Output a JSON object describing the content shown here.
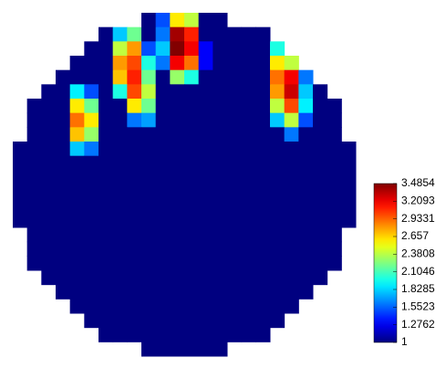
{
  "chart_data": {
    "type": "heatmap",
    "colormap": "jet",
    "clim": [
      1,
      3.4854
    ],
    "cticks": [
      1,
      1.2762,
      1.5523,
      1.8285,
      2.1046,
      2.3808,
      2.657,
      2.9331,
      3.2093,
      3.4854
    ],
    "z": [
      [
        null,
        null,
        null,
        null,
        null,
        null,
        null,
        null,
        null,
        1,
        1.5,
        2.6,
        2.4,
        1,
        1,
        null,
        null,
        null,
        null,
        null,
        null,
        null,
        null,
        null
      ],
      [
        null,
        null,
        null,
        null,
        null,
        null,
        1,
        1.8,
        2.2,
        1,
        1.6,
        3.4,
        3.1,
        1,
        1,
        1,
        1,
        1,
        null,
        null,
        null,
        null,
        null,
        null
      ],
      [
        null,
        null,
        null,
        null,
        null,
        1,
        1,
        2.4,
        2.8,
        1.5,
        1.8,
        3.48,
        3.2,
        1.3,
        1,
        1,
        1,
        1,
        2.0,
        null,
        null,
        null,
        null,
        null
      ],
      [
        null,
        null,
        null,
        null,
        1,
        1,
        1,
        2.8,
        3.0,
        2.0,
        1.6,
        3.2,
        2.9,
        1.3,
        1,
        1,
        1,
        1,
        2.6,
        2.4,
        null,
        null,
        null,
        null
      ],
      [
        null,
        null,
        null,
        1,
        1,
        1,
        1,
        2.7,
        3.1,
        2.2,
        1,
        2.3,
        2.0,
        1,
        1,
        1,
        1,
        1,
        2.9,
        3.2,
        1.6,
        null,
        null,
        null
      ],
      [
        null,
        null,
        1,
        1,
        1.9,
        1.5,
        1,
        2.0,
        3.0,
        2.4,
        1,
        1,
        1,
        1,
        1,
        1,
        1,
        1,
        2.8,
        3.3,
        1.8,
        1,
        null,
        null
      ],
      [
        null,
        1,
        1,
        1,
        2.6,
        2.2,
        1,
        1,
        2.6,
        2.2,
        1,
        1,
        1,
        1,
        1,
        1,
        1,
        1,
        2.4,
        3.0,
        1.9,
        1,
        1,
        null
      ],
      [
        null,
        1,
        1,
        1,
        2.9,
        2.6,
        1,
        1,
        1.6,
        1.7,
        1,
        1,
        1,
        1,
        1,
        1,
        1,
        1,
        1.8,
        2.4,
        1.5,
        1,
        1,
        null
      ],
      [
        null,
        1,
        1,
        1,
        2.7,
        2.3,
        1,
        1,
        1,
        1,
        1,
        1,
        1,
        1,
        1,
        1,
        1,
        1,
        1,
        1.6,
        1,
        1,
        1,
        null
      ],
      [
        1,
        1,
        1,
        1,
        1.8,
        1.6,
        1,
        1,
        1,
        1,
        1,
        1,
        1,
        1,
        1,
        1,
        1,
        1,
        1,
        1,
        1,
        1,
        1,
        1
      ],
      [
        1,
        1,
        1,
        1,
        1,
        1,
        1,
        1,
        1,
        1,
        1,
        1,
        1,
        1,
        1,
        1,
        1,
        1,
        1,
        1,
        1,
        1,
        1,
        1
      ],
      [
        1,
        1,
        1,
        1,
        1,
        1,
        1,
        1,
        1,
        1,
        1,
        1,
        1,
        1,
        1,
        1,
        1,
        1,
        1,
        1,
        1,
        1,
        1,
        1
      ],
      [
        1,
        1,
        1,
        1,
        1,
        1,
        1,
        1,
        1,
        1,
        1,
        1,
        1,
        1,
        1,
        1,
        1,
        1,
        1,
        1,
        1,
        1,
        1,
        1
      ],
      [
        1,
        1,
        1,
        1,
        1,
        1,
        1,
        1,
        1,
        1,
        1,
        1,
        1,
        1,
        1,
        1,
        1,
        1,
        1,
        1,
        1,
        1,
        1,
        1
      ],
      [
        1,
        1,
        1,
        1,
        1,
        1,
        1,
        1,
        1,
        1,
        1,
        1,
        1,
        1,
        1,
        1,
        1,
        1,
        1,
        1,
        1,
        1,
        1,
        1
      ],
      [
        null,
        1,
        1,
        1,
        1,
        1,
        1,
        1,
        1,
        1,
        1,
        1,
        1,
        1,
        1,
        1,
        1,
        1,
        1,
        1,
        1,
        1,
        1,
        null
      ],
      [
        null,
        1,
        1,
        1,
        1,
        1,
        1,
        1,
        1,
        1,
        1,
        1,
        1,
        1,
        1,
        1,
        1,
        1,
        1,
        1,
        1,
        1,
        1,
        null
      ],
      [
        null,
        1,
        1,
        1,
        1,
        1,
        1,
        1,
        1,
        1,
        1,
        1,
        1,
        1,
        1,
        1,
        1,
        1,
        1,
        1,
        1,
        1,
        1,
        null
      ],
      [
        null,
        null,
        1,
        1,
        1,
        1,
        1,
        1,
        1,
        1,
        1,
        1,
        1,
        1,
        1,
        1,
        1,
        1,
        1,
        1,
        1,
        1,
        null,
        null
      ],
      [
        null,
        null,
        null,
        1,
        1,
        1,
        1,
        1,
        1,
        1,
        1,
        1,
        1,
        1,
        1,
        1,
        1,
        1,
        1,
        1,
        1,
        null,
        null,
        null
      ],
      [
        null,
        null,
        null,
        null,
        1,
        1,
        1,
        1,
        1,
        1,
        1,
        1,
        1,
        1,
        1,
        1,
        1,
        1,
        1,
        1,
        null,
        null,
        null,
        null
      ],
      [
        null,
        null,
        null,
        null,
        null,
        1,
        1,
        1,
        1,
        1,
        1,
        1,
        1,
        1,
        1,
        1,
        1,
        1,
        1,
        null,
        null,
        null,
        null,
        null
      ],
      [
        null,
        null,
        null,
        null,
        null,
        null,
        1,
        1,
        1,
        1,
        1,
        1,
        1,
        1,
        1,
        1,
        1,
        1,
        null,
        null,
        null,
        null,
        null,
        null
      ],
      [
        null,
        null,
        null,
        null,
        null,
        null,
        null,
        null,
        null,
        1,
        1,
        1,
        1,
        1,
        1,
        null,
        null,
        null,
        null,
        null,
        null,
        null,
        null,
        null
      ]
    ]
  }
}
